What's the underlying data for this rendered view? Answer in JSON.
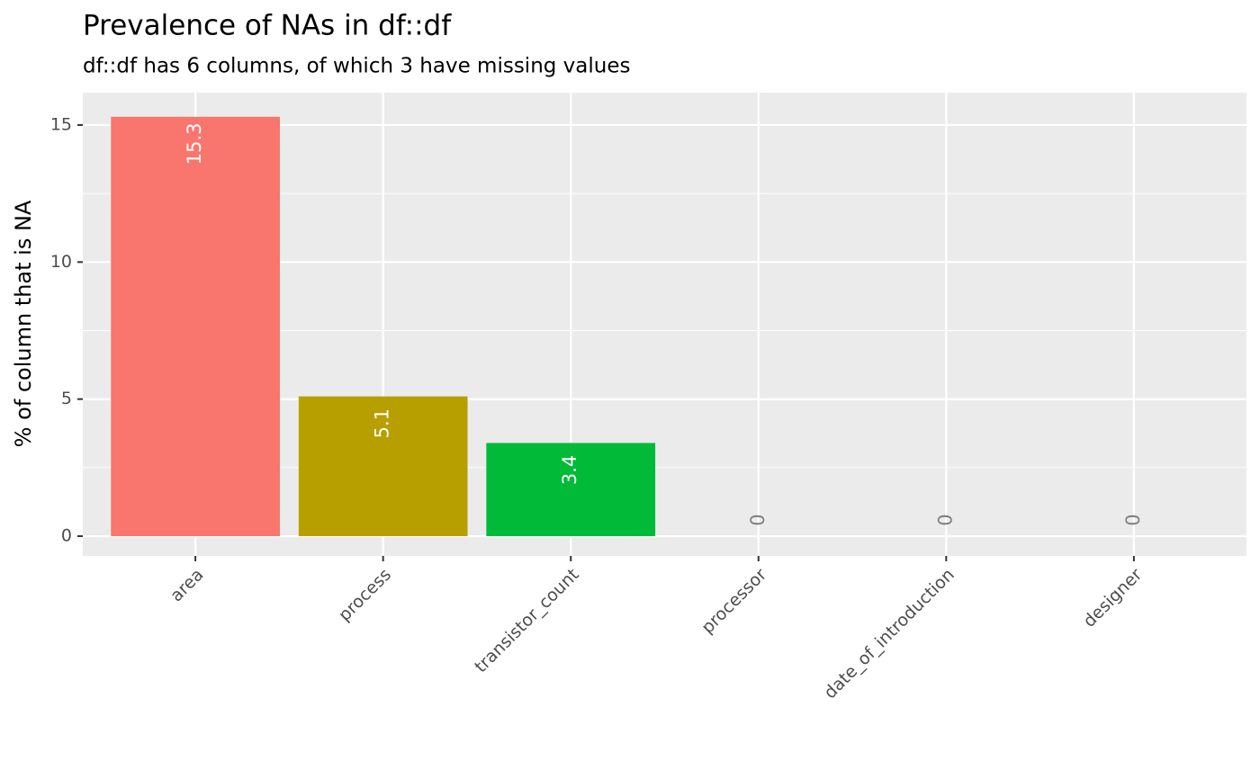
{
  "chart_data": {
    "type": "bar",
    "title": "Prevalence of NAs in df::df",
    "subtitle": "df::df has 6 columns, of which 3 have missing values",
    "y_label": "% of column that is NA",
    "categories": [
      "area",
      "process",
      "transistor_count",
      "processor",
      "date_of_introduction",
      "designer"
    ],
    "values": [
      15.3,
      5.1,
      3.4,
      0,
      0,
      0
    ],
    "colors": [
      "#F8766D",
      "#B79F00",
      "#00BA38",
      "#00BFC4",
      "#619CFF",
      "#F564E3"
    ],
    "ylim": [
      -0.72,
      16.18
    ],
    "yticks": [
      0,
      5,
      10,
      15
    ],
    "grid": true
  }
}
